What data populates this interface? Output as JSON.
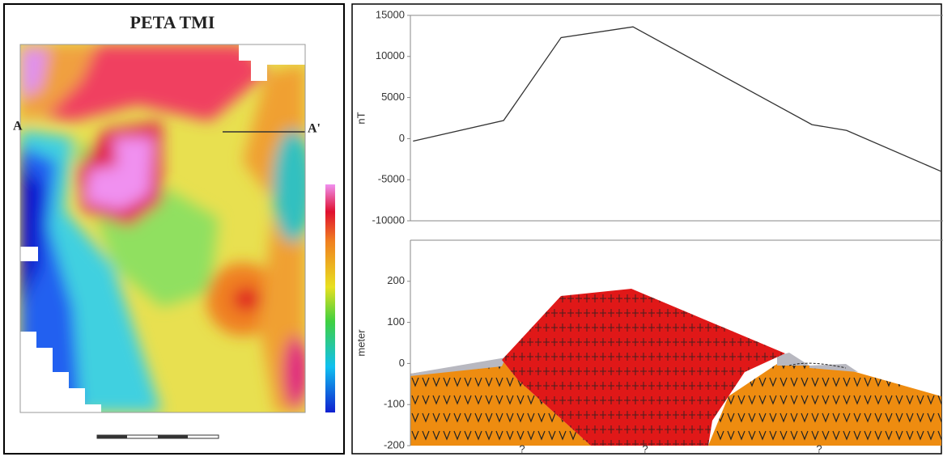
{
  "map": {
    "title": "PETA TMI",
    "label_start": "A",
    "label_end": "A'"
  },
  "chart_data": [
    {
      "type": "line",
      "ylabel": "nT",
      "color": "#333333",
      "x": [
        0.5,
        17.5,
        28.3,
        41.8,
        75.4,
        81.9,
        99.7
      ],
      "xlim": [
        0,
        100
      ],
      "values": [
        -300,
        2200,
        12300,
        13600,
        1700,
        1000,
        -4000
      ],
      "ylim": [
        -10000,
        15000
      ],
      "yticks": [
        -10000,
        -5000,
        0,
        5000,
        10000,
        15000
      ]
    },
    {
      "type": "section",
      "ylabel": "meter",
      "ylim": [
        -200,
        300
      ],
      "yticks": [
        -200,
        -100,
        0,
        100,
        200
      ],
      "annotations": [
        "?",
        "?",
        "?"
      ]
    }
  ]
}
